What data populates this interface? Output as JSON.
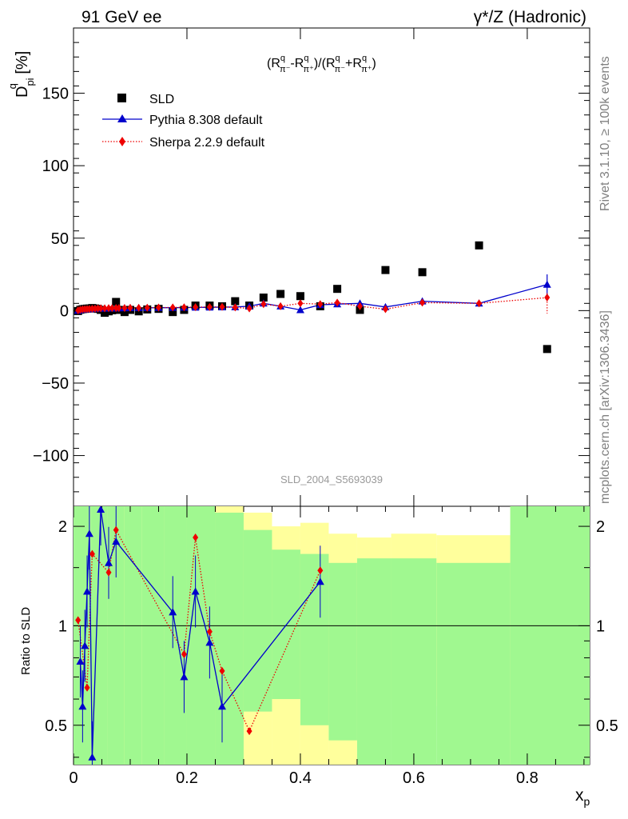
{
  "header": {
    "left_title": "91 GeV ee",
    "right_title": "γ*/Z (Hadronic)",
    "rivet_label": "Rivet 3.1.10, ≥ 100k events",
    "mcplots_label": "mcplots.cern.ch [arXiv:1306.3436]",
    "analysis_id": "SLD_2004_S5693039"
  },
  "chart_data": [
    {
      "type": "scatter",
      "ylabel": "D^q_pi [%]",
      "formula": "(R^q_π⁻-R^q_π⁺)/(R^q_π⁻+R^q_π⁺)",
      "xlim": [
        0,
        0.91
      ],
      "ylim": [
        -135,
        195
      ],
      "y_ticks": [
        -100,
        -50,
        0,
        50,
        100,
        150
      ],
      "legend_position": "top-left",
      "series": [
        {
          "name": "SLD",
          "color": "#000000",
          "marker": "square",
          "points": [
            [
              0.008,
              -0.3
            ],
            [
              0.012,
              0.6
            ],
            [
              0.016,
              1.0
            ],
            [
              0.02,
              1.2
            ],
            [
              0.024,
              1.4
            ],
            [
              0.028,
              1.5
            ],
            [
              0.033,
              1.8
            ],
            [
              0.038,
              1.5
            ],
            [
              0.043,
              1.2
            ],
            [
              0.048,
              0.5
            ],
            [
              0.055,
              -1.5
            ],
            [
              0.062,
              -0.5
            ],
            [
              0.068,
              0.2
            ],
            [
              0.075,
              6.0
            ],
            [
              0.08,
              0.5
            ],
            [
              0.09,
              -1.0
            ],
            [
              0.1,
              0.5
            ],
            [
              0.115,
              -0.5
            ],
            [
              0.13,
              0.8
            ],
            [
              0.15,
              1.2
            ],
            [
              0.175,
              -1.0
            ],
            [
              0.195,
              0.5
            ],
            [
              0.215,
              3.5
            ],
            [
              0.24,
              3.5
            ],
            [
              0.262,
              3.0
            ],
            [
              0.285,
              6.5
            ],
            [
              0.31,
              3.5
            ],
            [
              0.335,
              9.0
            ],
            [
              0.365,
              11.5
            ],
            [
              0.4,
              10.0
            ],
            [
              0.435,
              3.0
            ],
            [
              0.465,
              15.0
            ],
            [
              0.505,
              0.5
            ],
            [
              0.55,
              28.0
            ],
            [
              0.615,
              26.5
            ],
            [
              0.715,
              45.0
            ],
            [
              0.835,
              -26.5
            ]
          ]
        },
        {
          "name": "Pythia 8.308 default",
          "color": "#0000cc",
          "marker": "triangle",
          "points": [
            [
              0.008,
              0.0
            ],
            [
              0.012,
              0.5
            ],
            [
              0.016,
              0.8
            ],
            [
              0.02,
              0.9
            ],
            [
              0.024,
              1.0
            ],
            [
              0.028,
              1.1
            ],
            [
              0.033,
              1.2
            ],
            [
              0.038,
              1.4
            ],
            [
              0.043,
              1.5
            ],
            [
              0.048,
              1.5
            ],
            [
              0.055,
              1.5
            ],
            [
              0.062,
              1.6
            ],
            [
              0.068,
              1.6
            ],
            [
              0.075,
              1.7
            ],
            [
              0.08,
              1.7
            ],
            [
              0.09,
              1.8
            ],
            [
              0.1,
              1.9
            ],
            [
              0.115,
              1.9
            ],
            [
              0.13,
              1.9
            ],
            [
              0.15,
              2.0
            ],
            [
              0.175,
              2.0
            ],
            [
              0.195,
              2.1
            ],
            [
              0.215,
              2.2
            ],
            [
              0.24,
              2.3
            ],
            [
              0.262,
              2.4
            ],
            [
              0.285,
              2.5
            ],
            [
              0.31,
              3.0
            ],
            [
              0.335,
              5.0
            ],
            [
              0.365,
              3.0
            ],
            [
              0.4,
              0.5
            ],
            [
              0.435,
              4.0
            ],
            [
              0.465,
              4.5
            ],
            [
              0.505,
              5.0
            ],
            [
              0.55,
              2.5
            ],
            [
              0.615,
              6.5
            ],
            [
              0.715,
              5.0
            ],
            [
              0.835,
              18.0
            ]
          ]
        },
        {
          "name": "Sherpa 2.2.9 default",
          "color": "#ee0000",
          "marker": "diamond",
          "points": [
            [
              0.008,
              0.2
            ],
            [
              0.012,
              0.6
            ],
            [
              0.016,
              0.9
            ],
            [
              0.02,
              1.0
            ],
            [
              0.024,
              1.1
            ],
            [
              0.028,
              1.2
            ],
            [
              0.033,
              1.3
            ],
            [
              0.038,
              1.4
            ],
            [
              0.043,
              1.5
            ],
            [
              0.048,
              1.6
            ],
            [
              0.055,
              1.6
            ],
            [
              0.062,
              1.7
            ],
            [
              0.068,
              1.7
            ],
            [
              0.075,
              1.8
            ],
            [
              0.08,
              1.8
            ],
            [
              0.09,
              1.8
            ],
            [
              0.1,
              1.9
            ],
            [
              0.115,
              1.9
            ],
            [
              0.13,
              2.0
            ],
            [
              0.15,
              2.1
            ],
            [
              0.175,
              2.2
            ],
            [
              0.195,
              2.3
            ],
            [
              0.215,
              2.4
            ],
            [
              0.24,
              2.5
            ],
            [
              0.262,
              2.6
            ],
            [
              0.285,
              2.2
            ],
            [
              0.31,
              1.5
            ],
            [
              0.335,
              4.5
            ],
            [
              0.365,
              3.0
            ],
            [
              0.4,
              5.0
            ],
            [
              0.435,
              4.5
            ],
            [
              0.465,
              5.5
            ],
            [
              0.505,
              3.0
            ],
            [
              0.55,
              1.0
            ],
            [
              0.615,
              5.5
            ],
            [
              0.715,
              5.0
            ],
            [
              0.835,
              9.0
            ]
          ]
        }
      ]
    },
    {
      "type": "line",
      "ylabel": "Ratio to SLD",
      "xlabel": "x_p",
      "xlim": [
        0,
        0.91
      ],
      "ylim": [
        0.38,
        2.3
      ],
      "y_scale": "log",
      "y_ticks": [
        0.5,
        1,
        2
      ],
      "x_ticks": [
        0,
        0.2,
        0.4,
        0.6,
        0.8
      ],
      "reference_line": 1,
      "band_colors": {
        "inner": "#a0f890",
        "outer": "#ffff9c"
      },
      "series": [
        {
          "name": "Pythia 8.308 default",
          "color": "#0000cc",
          "points": [
            [
              0.012,
              0.78
            ],
            [
              0.016,
              0.57
            ],
            [
              0.02,
              0.87
            ],
            [
              0.024,
              1.27
            ],
            [
              0.028,
              1.9
            ],
            [
              0.033,
              0.4
            ],
            [
              0.048,
              2.25
            ],
            [
              0.062,
              1.55
            ],
            [
              0.075,
              1.8
            ],
            [
              0.175,
              1.1
            ],
            [
              0.195,
              0.7
            ],
            [
              0.215,
              1.27
            ],
            [
              0.24,
              0.89
            ],
            [
              0.262,
              0.57
            ],
            [
              0.435,
              1.36
            ]
          ]
        },
        {
          "name": "Sherpa 2.2.9 default",
          "color": "#ee0000",
          "points": [
            [
              0.008,
              1.04
            ],
            [
              0.024,
              0.65
            ],
            [
              0.033,
              1.65
            ],
            [
              0.062,
              1.45
            ],
            [
              0.075,
              1.95
            ],
            [
              0.195,
              0.82
            ],
            [
              0.215,
              1.85
            ],
            [
              0.24,
              0.96
            ],
            [
              0.262,
              0.73
            ],
            [
              0.31,
              0.48
            ],
            [
              0.435,
              1.47
            ]
          ]
        }
      ]
    }
  ]
}
